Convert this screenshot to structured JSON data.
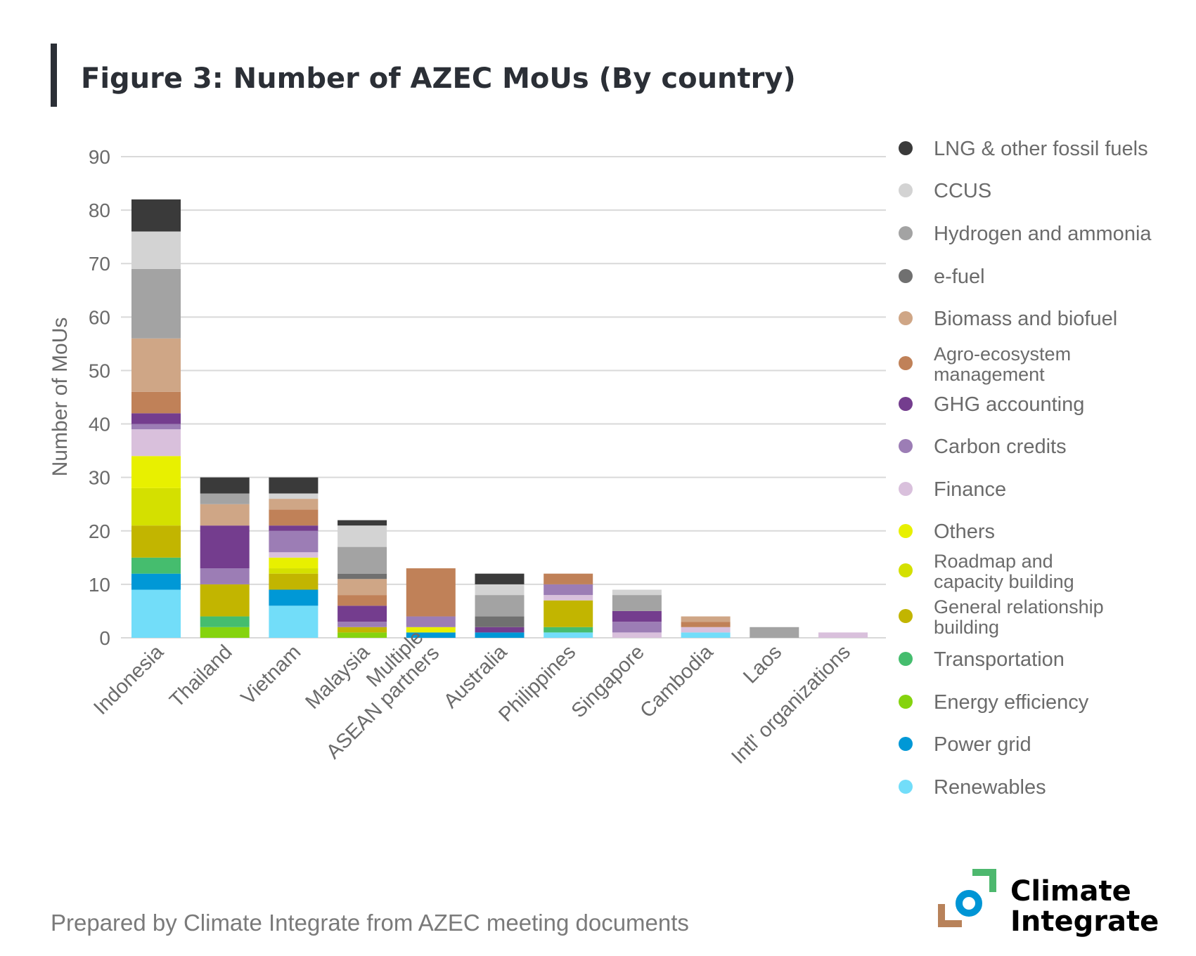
{
  "chart_data": {
    "type": "bar",
    "stacked": true,
    "title": "Figure 3: Number of AZEC MoUs (By country)",
    "ylabel": "Number of MoUs",
    "xlabel": "",
    "ylim": [
      0,
      90
    ],
    "yticks": [
      0,
      10,
      20,
      30,
      40,
      50,
      60,
      70,
      80,
      90
    ],
    "grid": true,
    "legend_position": "right",
    "categories": [
      "Indonesia",
      "Thailand",
      "Vietnam",
      "Malaysia",
      "Multiple\nASEAN partners",
      "Australia",
      "Philippines",
      "Singapore",
      "Cambodia",
      "Laos",
      "Intl' organizations"
    ],
    "series": [
      {
        "name": "Renewables",
        "color": "#72ddf9",
        "values": [
          9,
          0,
          6,
          0,
          0,
          0,
          1,
          0,
          1,
          0,
          0
        ]
      },
      {
        "name": "Power grid",
        "color": "#0098d6",
        "values": [
          3,
          0,
          3,
          0,
          1,
          1,
          0,
          0,
          0,
          0,
          0
        ]
      },
      {
        "name": "Energy efficiency",
        "color": "#85d30e",
        "values": [
          0,
          2,
          0,
          1,
          0,
          0,
          0,
          0,
          0,
          0,
          0
        ]
      },
      {
        "name": "Transportation",
        "color": "#45bd6e",
        "values": [
          3,
          2,
          0,
          0,
          0,
          0,
          1,
          0,
          0,
          0,
          0
        ]
      },
      {
        "name": "General relationship\nbuilding",
        "color": "#c2b500",
        "values": [
          6,
          6,
          3,
          1,
          0,
          0,
          5,
          0,
          0,
          0,
          0
        ]
      },
      {
        "name": "Roadmap and\ncapacity building",
        "color": "#d4e000",
        "values": [
          7,
          0,
          1,
          0,
          0,
          0,
          0,
          0,
          0,
          0,
          0
        ]
      },
      {
        "name": "Others",
        "color": "#e8f000",
        "values": [
          6,
          0,
          2,
          0,
          1,
          0,
          0,
          0,
          0,
          0,
          0
        ]
      },
      {
        "name": "Finance",
        "color": "#d9c0dc",
        "values": [
          5,
          0,
          1,
          0,
          0,
          0,
          1,
          1,
          1,
          0,
          1
        ]
      },
      {
        "name": "Carbon credits",
        "color": "#9c7db5",
        "values": [
          1,
          3,
          4,
          1,
          2,
          0,
          2,
          2,
          0,
          0,
          0
        ]
      },
      {
        "name": "GHG accounting",
        "color": "#743d8e",
        "values": [
          2,
          8,
          1,
          3,
          0,
          1,
          0,
          2,
          0,
          0,
          0
        ]
      },
      {
        "name": "Agro-ecosystem\nmanagement",
        "color": "#c08158",
        "values": [
          4,
          0,
          3,
          2,
          9,
          0,
          2,
          0,
          1,
          0,
          0
        ]
      },
      {
        "name": "Biomass and biofuel",
        "color": "#cfa686",
        "values": [
          10,
          4,
          2,
          3,
          0,
          0,
          0,
          0,
          1,
          0,
          0
        ]
      },
      {
        "name": "e-fuel",
        "color": "#707070",
        "values": [
          0,
          0,
          0,
          1,
          0,
          2,
          0,
          0,
          0,
          0,
          0
        ]
      },
      {
        "name": "Hydrogen and ammonia",
        "color": "#a3a3a3",
        "values": [
          13,
          2,
          0,
          5,
          0,
          4,
          0,
          3,
          0,
          2,
          0
        ]
      },
      {
        "name": "CCUS",
        "color": "#d3d3d3",
        "values": [
          7,
          0,
          1,
          4,
          0,
          2,
          0,
          1,
          0,
          0,
          0
        ]
      },
      {
        "name": "LNG & other fossil fuels",
        "color": "#3a3a3a",
        "values": [
          6,
          3,
          3,
          1,
          0,
          2,
          0,
          0,
          0,
          0,
          0
        ]
      }
    ]
  },
  "footer": {
    "source": "Prepared by Climate Integrate from AZEC meeting documents"
  },
  "logo": {
    "line1": "Climate",
    "line2": "Integrate"
  },
  "colors": {
    "title_bar": "#2b2f36",
    "logo_green": "#4db86e",
    "logo_blue": "#0095d5",
    "logo_brown": "#b8825a"
  }
}
